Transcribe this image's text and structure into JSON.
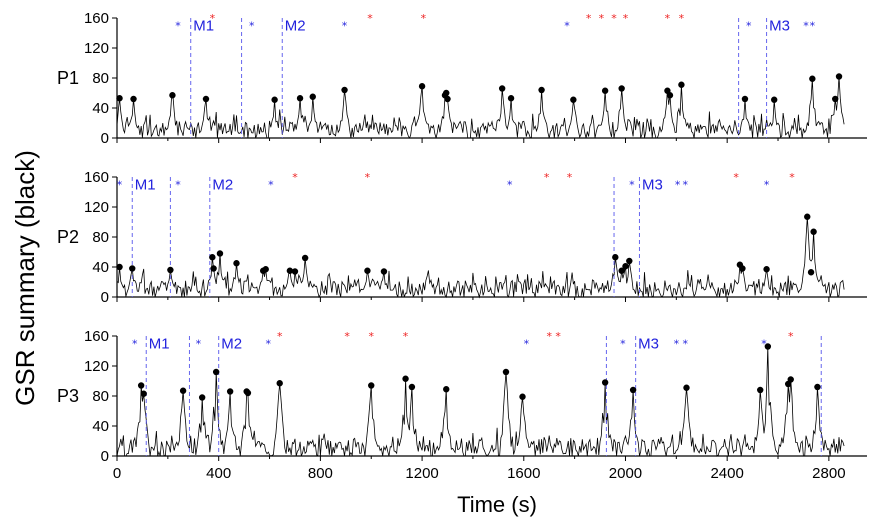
{
  "colors": {
    "signal": "#000000",
    "peak": "#000000",
    "blue_marker": "#2222dd",
    "red_marker": "#ee2222",
    "dashed_line": "#6666ee"
  },
  "chart_data": {
    "type": "line",
    "ylabel": "GSR summary (black)",
    "xlabel": "Time (s)",
    "xlim": [
      0,
      2950
    ],
    "x_ticks": [
      0,
      400,
      800,
      1200,
      1600,
      2000,
      2400,
      2800
    ],
    "x_tick_labels": [
      "0",
      "400",
      "800",
      "1200",
      "1600",
      "2000",
      "2400",
      "2800"
    ],
    "ylim": [
      0,
      160
    ],
    "y_ticks": [
      0,
      40,
      80,
      120,
      160
    ],
    "y_tick_labels": [
      "0",
      "40",
      "80",
      "120",
      "160"
    ],
    "panels": [
      {
        "label": "P1",
        "peaks": [
          [
            10,
            53
          ],
          [
            65,
            52
          ],
          [
            218,
            57
          ],
          [
            350,
            52
          ],
          [
            620,
            51
          ],
          [
            720,
            53
          ],
          [
            770,
            55
          ],
          [
            895,
            64
          ],
          [
            1200,
            69
          ],
          [
            1290,
            57
          ],
          [
            1295,
            60
          ],
          [
            1300,
            52
          ],
          [
            1515,
            66
          ],
          [
            1550,
            53
          ],
          [
            1670,
            64
          ],
          [
            1795,
            51
          ],
          [
            1920,
            63
          ],
          [
            1985,
            66
          ],
          [
            2165,
            63
          ],
          [
            2175,
            57
          ],
          [
            2220,
            71
          ],
          [
            2470,
            52
          ],
          [
            2585,
            51
          ],
          [
            2735,
            79
          ],
          [
            2825,
            52
          ],
          [
            2840,
            82
          ]
        ],
        "blue_stars": [
          240,
          530,
          895,
          1770,
          2485,
          2710,
          2735
        ],
        "red_stars": [
          375,
          995,
          1205,
          1855,
          1905,
          1955,
          2000,
          2165,
          2220
        ],
        "dashed_lines": [
          290,
          490,
          650,
          2445,
          2555
        ],
        "marker_labels": [
          {
            "text": "M1",
            "x": 300
          },
          {
            "text": "M2",
            "x": 660
          },
          {
            "text": "M3",
            "x": 2565
          }
        ],
        "trace_seed": 11
      },
      {
        "label": "P2",
        "peaks": [
          [
            10,
            40
          ],
          [
            60,
            38
          ],
          [
            210,
            36
          ],
          [
            375,
            53
          ],
          [
            380,
            38
          ],
          [
            405,
            58
          ],
          [
            470,
            45
          ],
          [
            575,
            35
          ],
          [
            585,
            37
          ],
          [
            680,
            35
          ],
          [
            700,
            34
          ],
          [
            740,
            52
          ],
          [
            985,
            35
          ],
          [
            1050,
            34
          ],
          [
            1960,
            53
          ],
          [
            1985,
            35
          ],
          [
            2000,
            41
          ],
          [
            2015,
            48
          ],
          [
            2450,
            43
          ],
          [
            2460,
            38
          ],
          [
            2555,
            37
          ],
          [
            2715,
            107
          ],
          [
            2730,
            33
          ],
          [
            2740,
            87
          ]
        ],
        "blue_stars": [
          10,
          240,
          605,
          1545,
          2025,
          2205,
          2235,
          2555
        ],
        "red_stars": [
          700,
          985,
          1690,
          1780,
          2435,
          2655
        ],
        "dashed_lines": [
          60,
          210,
          365,
          1955,
          2055
        ],
        "marker_labels": [
          {
            "text": "M1",
            "x": 70
          },
          {
            "text": "M2",
            "x": 375
          },
          {
            "text": "M3",
            "x": 2065
          }
        ],
        "trace_seed": 29
      },
      {
        "label": "P3",
        "peaks": [
          [
            95,
            94
          ],
          [
            105,
            83
          ],
          [
            260,
            87
          ],
          [
            335,
            78
          ],
          [
            390,
            112
          ],
          [
            445,
            86
          ],
          [
            510,
            86
          ],
          [
            515,
            84
          ],
          [
            640,
            97
          ],
          [
            1000,
            94
          ],
          [
            1135,
            103
          ],
          [
            1160,
            92
          ],
          [
            1295,
            89
          ],
          [
            1530,
            112
          ],
          [
            1595,
            79
          ],
          [
            1920,
            98
          ],
          [
            2030,
            88
          ],
          [
            2240,
            91
          ],
          [
            2530,
            88
          ],
          [
            2560,
            146
          ],
          [
            2640,
            96
          ],
          [
            2650,
            102
          ],
          [
            2755,
            92
          ]
        ],
        "blue_stars": [
          70,
          320,
          595,
          1610,
          1990,
          2200,
          2235,
          2545
        ],
        "red_stars": [
          640,
          905,
          1000,
          1135,
          1700,
          1735,
          2650
        ],
        "dashed_lines": [
          115,
          285,
          400,
          1925,
          2040,
          2770
        ],
        "marker_labels": [
          {
            "text": "M1",
            "x": 125
          },
          {
            "text": "M2",
            "x": 410
          },
          {
            "text": "M3",
            "x": 2050
          }
        ],
        "trace_seed": 47
      }
    ]
  }
}
